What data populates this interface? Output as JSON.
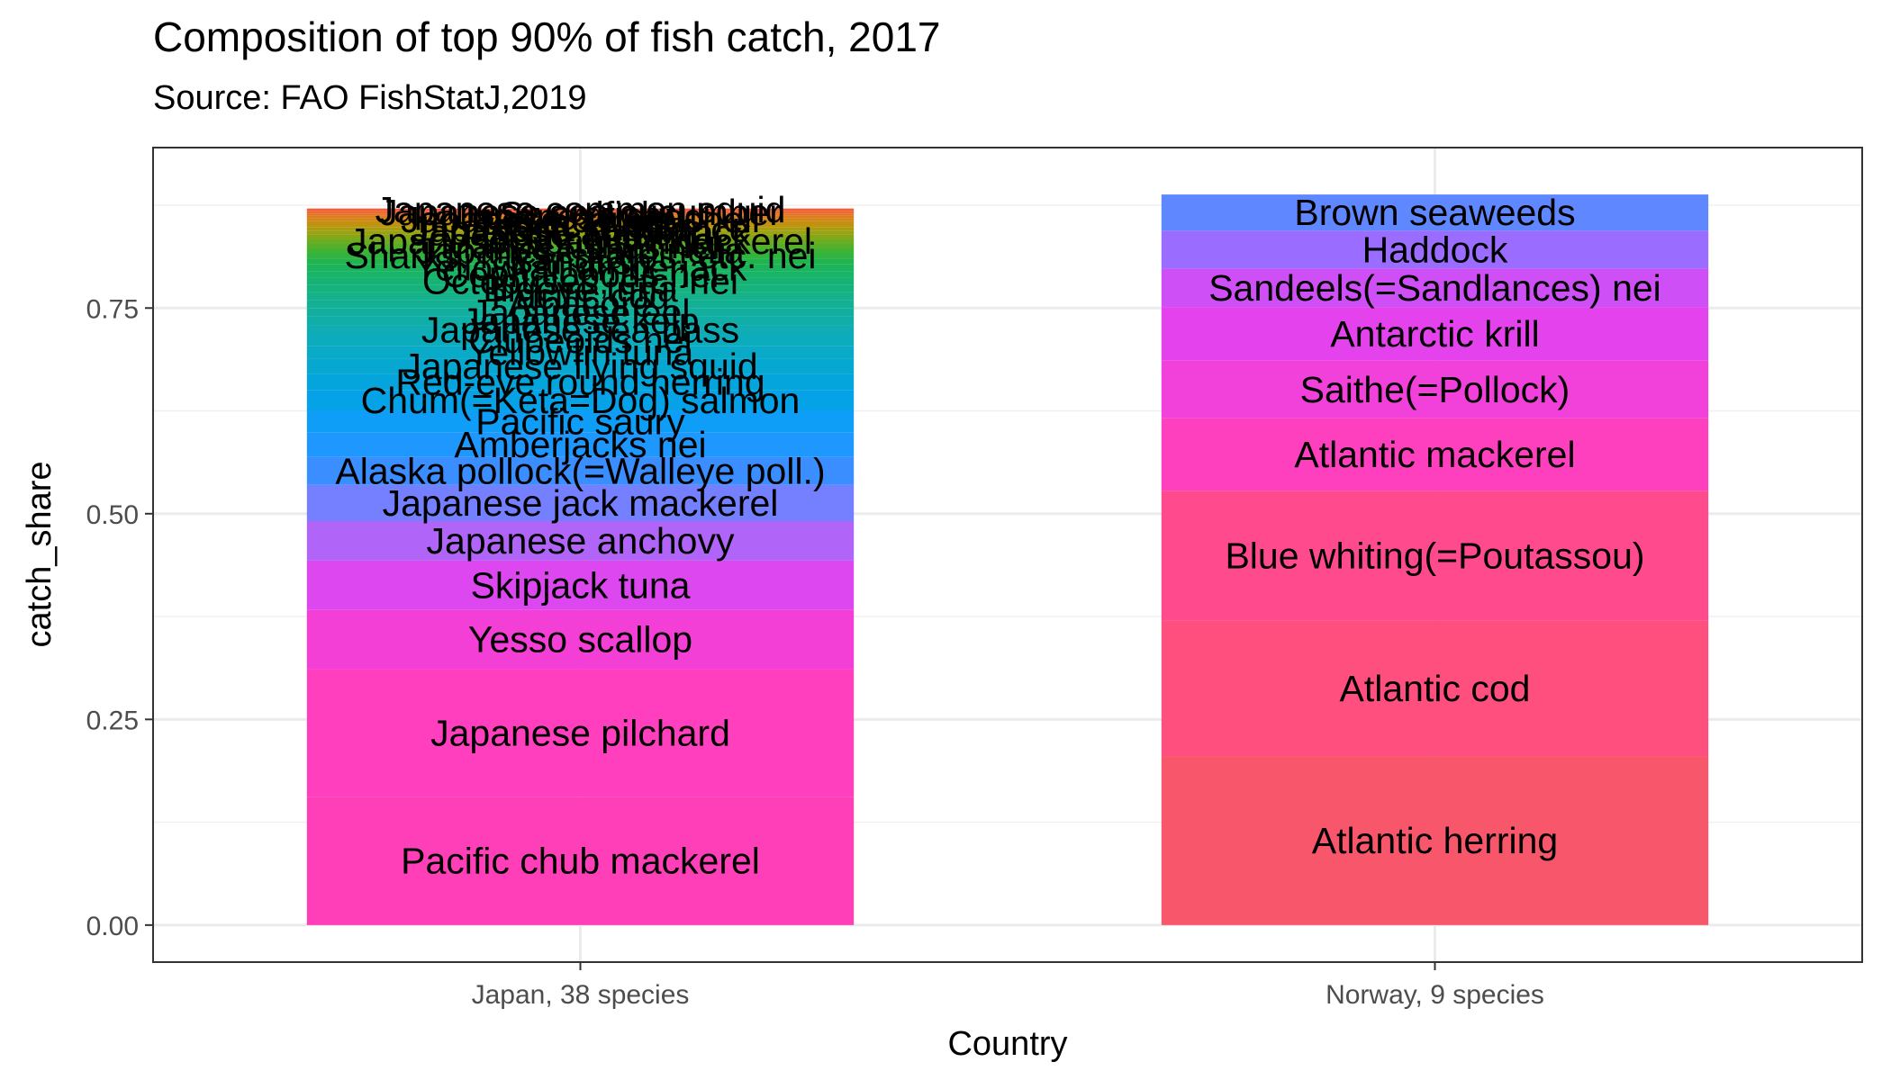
{
  "chart_data": {
    "type": "bar",
    "stacked": true,
    "title": "Composition of top 90% of fish catch, 2017",
    "subtitle": "Source: FAO FishStatJ,2019",
    "xlabel": "Country",
    "ylabel": "catch_share",
    "ylim": [
      -0.045,
      0.945
    ],
    "yticks": [
      "0.00",
      "0.25",
      "0.50",
      "0.75"
    ],
    "yticks_values": [
      0,
      0.25,
      0.5,
      0.75
    ],
    "grid": true,
    "legend": "none",
    "categories": [
      "Japan, 38 species",
      "Norway, 9 species"
    ],
    "stacks": [
      {
        "category": "Japan, 38 species",
        "segments": [
          {
            "name": "Pacific chub mackerel",
            "value": 0.156,
            "color": "#FF3FB8"
          },
          {
            "name": "Japanese pilchard",
            "value": 0.155,
            "color": "#FF3FBE"
          },
          {
            "name": "Yesso scallop",
            "value": 0.072,
            "color": "#F43FD6"
          },
          {
            "name": "Skipjack tuna",
            "value": 0.06,
            "color": "#DC47F0"
          },
          {
            "name": "Japanese anchovy",
            "value": 0.048,
            "color": "#B164F8"
          },
          {
            "name": "Japanese jack mackerel",
            "value": 0.044,
            "color": "#7480FF"
          },
          {
            "name": "Alaska pollock(=Walleye poll.)",
            "value": 0.034,
            "color": "#3B8EFF"
          },
          {
            "name": "Amberjacks nei",
            "value": 0.03,
            "color": "#1E98FF"
          },
          {
            "name": "Pacific saury",
            "value": 0.026,
            "color": "#0E9EF8"
          },
          {
            "name": "Chum(=Keta=Dog) salmon",
            "value": 0.025,
            "color": "#05A2E8"
          },
          {
            "name": "Red-eye round herring",
            "value": 0.02,
            "color": "#04A5DC"
          },
          {
            "name": "Japanese flying squid",
            "value": 0.018,
            "color": "#06A8D2"
          },
          {
            "name": "Yellowfin tuna",
            "value": 0.016,
            "color": "#09AAC8"
          },
          {
            "name": "Clupeoids nei",
            "value": 0.014,
            "color": "#0CACBD"
          },
          {
            "name": "Japanese sea bass",
            "value": 0.011,
            "color": "#0FADB3"
          },
          {
            "name": "Japanese kelp",
            "value": 0.011,
            "color": "#11AEA8"
          },
          {
            "name": "Japanese eel",
            "value": 0.01,
            "color": "#13AF9E"
          },
          {
            "name": "Albacore",
            "value": 0.01,
            "color": "#14B094"
          },
          {
            "name": "Pacific cod",
            "value": 0.009,
            "color": "#15B189"
          },
          {
            "name": "Bigeye tuna",
            "value": 0.009,
            "color": "#16B27E"
          },
          {
            "name": "Octopuses, etc. nei",
            "value": 0.009,
            "color": "#17B373"
          },
          {
            "name": "Cephalopods nei",
            "value": 0.008,
            "color": "#19B467"
          },
          {
            "name": "Yellowtail amberjack",
            "value": 0.008,
            "color": "#1BB45A"
          },
          {
            "name": "Sandfish",
            "value": 0.007,
            "color": "#22B44C"
          },
          {
            "name": "Sharks, rays, skates, etc. nei",
            "value": 0.007,
            "color": "#30B33F"
          },
          {
            "name": "Japanese sardinella",
            "value": 0.006,
            "color": "#42B232"
          },
          {
            "name": "Marine fishes nei",
            "value": 0.006,
            "color": "#58AF27"
          },
          {
            "name": "Japanese Spanish mackerel",
            "value": 0.005,
            "color": "#6EAB1E"
          },
          {
            "name": "Pacific herring",
            "value": 0.005,
            "color": "#84A717"
          },
          {
            "name": "Japanese amberjack",
            "value": 0.005,
            "color": "#98A212"
          },
          {
            "name": "Japanese sandlance",
            "value": 0.004,
            "color": "#AA9C10"
          },
          {
            "name": "Pacific oyster",
            "value": 0.004,
            "color": "#BA9510"
          },
          {
            "name": "Laver (Nori)",
            "value": 0.004,
            "color": "#C88E12"
          },
          {
            "name": "Japanese carpet shell",
            "value": 0.003,
            "color": "#D38616"
          },
          {
            "name": "Japanese scad",
            "value": 0.003,
            "color": "#DC7E1D"
          },
          {
            "name": "Swordfish",
            "value": 0.003,
            "color": "#E47526"
          },
          {
            "name": "Japanese sea cucumber",
            "value": 0.003,
            "color": "#EA6B32"
          },
          {
            "name": "Japanese common squid",
            "value": 0.003,
            "color": "#F0603F"
          }
        ]
      },
      {
        "category": "Norway, 9 species",
        "segments": [
          {
            "name": "Atlantic herring",
            "value": 0.205,
            "color": "#F8576B"
          },
          {
            "name": "Atlantic cod",
            "value": 0.165,
            "color": "#FE4F7E"
          },
          {
            "name": "Blue whiting(=Poutassou)",
            "value": 0.158,
            "color": "#FF4A8E"
          },
          {
            "name": "Atlantic mackerel",
            "value": 0.088,
            "color": "#FF40BE"
          },
          {
            "name": "Saithe(=Pollock)",
            "value": 0.07,
            "color": "#F240DA"
          },
          {
            "name": "Antarctic krill",
            "value": 0.065,
            "color": "#E442EC"
          },
          {
            "name": "Sandeels(=Sandlances) nei",
            "value": 0.047,
            "color": "#CF4FF6"
          },
          {
            "name": "Haddock",
            "value": 0.046,
            "color": "#9A6CFF"
          },
          {
            "name": "Brown seaweeds",
            "value": 0.044,
            "color": "#5F87FF"
          }
        ]
      }
    ]
  }
}
